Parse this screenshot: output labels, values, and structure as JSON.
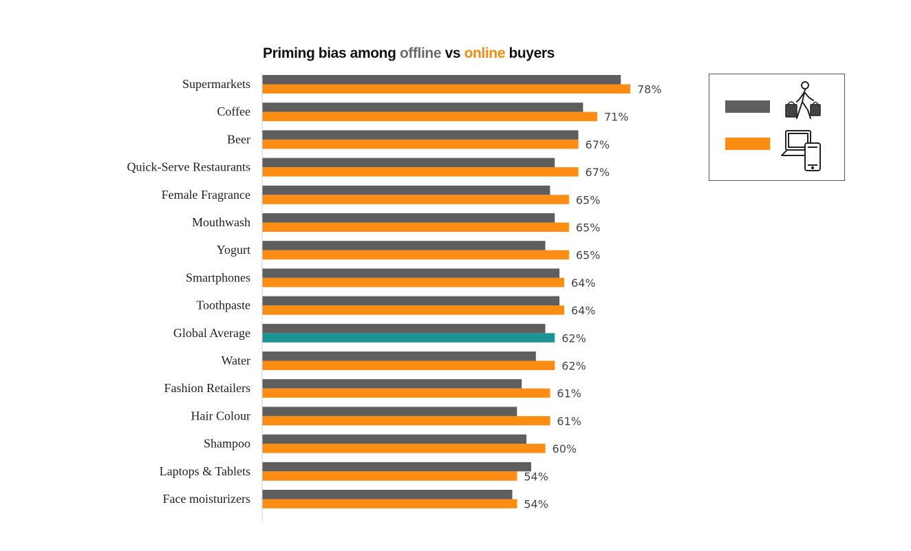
{
  "title": {
    "prefix": "Priming bias among ",
    "offline": "offline",
    "middle": " vs ",
    "online": "online",
    "suffix": " buyers"
  },
  "colors": {
    "offline": "#5e5e5e",
    "online": "#fb8c14",
    "highlight": "#1d9394",
    "title_offline": "#6b6b6b",
    "title_online": "#f58a0f"
  },
  "legend": {
    "offline_icon": "shopper-with-bags-icon",
    "online_icon": "laptop-and-phone-icon"
  },
  "chart_data": {
    "type": "bar",
    "orientation": "horizontal",
    "title": "Priming bias among offline vs online buyers",
    "categories": [
      "Supermarkets",
      "Coffee",
      "Beer",
      "Quick-Serve Restaurants",
      "Female Fragrance",
      "Mouthwash",
      "Yogurt",
      "Smartphones",
      "Toothpaste",
      "Global Average",
      "Water",
      "Fashion Retailers",
      "Hair Colour",
      "Shampoo",
      "Laptops & Tablets",
      "Face moisturizers"
    ],
    "series": [
      {
        "name": "offline",
        "values": [
          76,
          68,
          67,
          62,
          61,
          62,
          60,
          63,
          63,
          60,
          58,
          55,
          54,
          56,
          57,
          53
        ]
      },
      {
        "name": "online",
        "values": [
          78,
          71,
          67,
          67,
          65,
          65,
          65,
          64,
          64,
          62,
          62,
          61,
          61,
          60,
          54,
          54
        ],
        "labels": [
          "78%",
          "71%",
          "67%",
          "67%",
          "65%",
          "65%",
          "65%",
          "64%",
          "64%",
          "62%",
          "62%",
          "61%",
          "61%",
          "60%",
          "54%",
          "54%"
        ],
        "highlight_category": "Global Average"
      }
    ],
    "xlim": [
      0,
      78
    ],
    "legend_position": "top-right",
    "grid": false
  }
}
